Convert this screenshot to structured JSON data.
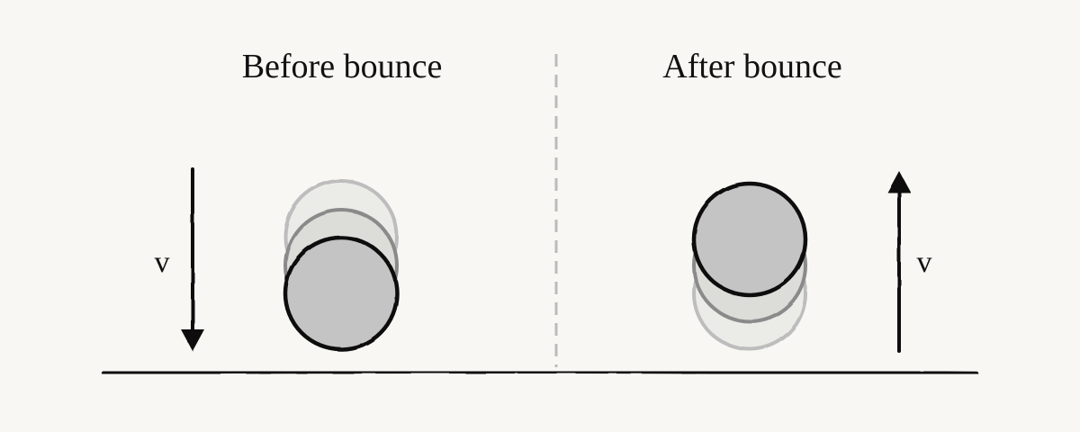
{
  "before": {
    "title": "Before bounce",
    "velocity_label": "v",
    "velocity_direction": "down"
  },
  "after": {
    "title": "After bounce",
    "velocity_label": "v",
    "velocity_direction": "up"
  },
  "colors": {
    "background": "#f8f7f3",
    "ink": "#111111",
    "ball_fill": "#c4c4c4",
    "ghost_mid_fill": "#dcdcd8",
    "ghost_far_fill": "#ebebe7",
    "divider": "#bbbbbb"
  }
}
